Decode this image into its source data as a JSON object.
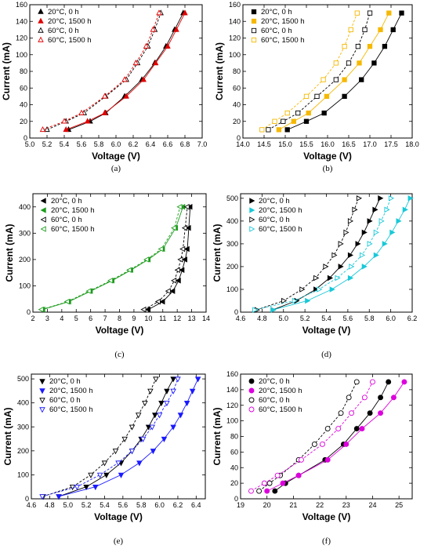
{
  "chart_data": [
    {
      "type": "scatter",
      "panel": "a",
      "caption": "(a)",
      "xlabel": "Voltage (V)",
      "ylabel": "Current (mA)",
      "xlim": [
        5.0,
        7.0
      ],
      "ylim": [
        0,
        160
      ],
      "xticks": [
        5.0,
        5.2,
        5.4,
        5.6,
        5.8,
        6.0,
        6.2,
        6.4,
        6.6,
        6.8,
        7.0
      ],
      "xtick_labels": [
        "5.0",
        "5.2",
        "5.4",
        "5.6",
        "5.8",
        "6.0",
        "6.2",
        "6.4",
        "6.6",
        "6.8",
        "7.0"
      ],
      "yticks": [
        0,
        20,
        40,
        60,
        80,
        100,
        120,
        140,
        160
      ],
      "ytick_labels": [
        "0",
        "20",
        "40",
        "60",
        "80",
        "100",
        "120",
        "140",
        "160"
      ],
      "legend_position": "top-left",
      "series": [
        {
          "name": "20°C, 0 h",
          "marker": "triangle-up",
          "filled": true,
          "color": "#000000",
          "line": "solid",
          "x": [
            5.45,
            5.7,
            5.88,
            6.1,
            6.3,
            6.45,
            6.58,
            6.68,
            6.78
          ],
          "y": [
            10,
            20,
            30,
            50,
            70,
            90,
            110,
            130,
            150
          ]
        },
        {
          "name": "20°C, 1500 h",
          "marker": "triangle-up",
          "filled": true,
          "color": "#e00000",
          "line": "solid",
          "x": [
            5.42,
            5.67,
            5.87,
            6.12,
            6.32,
            6.46,
            6.6,
            6.7,
            6.8
          ],
          "y": [
            10,
            20,
            30,
            50,
            70,
            90,
            110,
            130,
            150
          ]
        },
        {
          "name": "60°C, 0 h",
          "marker": "triangle-up",
          "filled": false,
          "color": "#000000",
          "line": "dash",
          "x": [
            5.2,
            5.42,
            5.63,
            5.88,
            6.12,
            6.25,
            6.37,
            6.45,
            6.52
          ],
          "y": [
            10,
            20,
            30,
            50,
            70,
            90,
            110,
            130,
            150
          ]
        },
        {
          "name": "60°C, 1500 h",
          "marker": "triangle-up",
          "filled": false,
          "color": "#e00000",
          "line": "dash",
          "x": [
            5.15,
            5.4,
            5.6,
            5.87,
            6.1,
            6.23,
            6.35,
            6.43,
            6.5
          ],
          "y": [
            10,
            20,
            30,
            50,
            70,
            90,
            110,
            130,
            150
          ]
        }
      ]
    },
    {
      "type": "scatter",
      "panel": "b",
      "caption": "(b)",
      "xlabel": "Voltage (V)",
      "ylabel": "Current (mA)",
      "xlim": [
        14.0,
        18.0
      ],
      "ylim": [
        0,
        160
      ],
      "xticks": [
        14.0,
        14.5,
        15.0,
        15.5,
        16.0,
        16.5,
        17.0,
        17.5,
        18.0
      ],
      "xtick_labels": [
        "14.0",
        "14.5",
        "15.0",
        "15.5",
        "16.0",
        "16.5",
        "17.0",
        "17.5",
        "18.0"
      ],
      "yticks": [
        0,
        20,
        40,
        60,
        80,
        100,
        120,
        140,
        160
      ],
      "ytick_labels": [
        "0",
        "20",
        "40",
        "60",
        "80",
        "100",
        "120",
        "140",
        "160"
      ],
      "legend_position": "top-left",
      "series": [
        {
          "name": "20°C, 0 h",
          "marker": "square",
          "filled": true,
          "color": "#000000",
          "line": "solid",
          "x": [
            15.05,
            15.5,
            15.92,
            16.4,
            16.8,
            17.1,
            17.35,
            17.55,
            17.75
          ],
          "y": [
            10,
            20,
            30,
            50,
            70,
            90,
            110,
            130,
            150
          ]
        },
        {
          "name": "20°C, 1500 h",
          "marker": "square",
          "filled": true,
          "color": "#f5b800",
          "line": "solid",
          "x": [
            14.85,
            15.2,
            15.55,
            15.98,
            16.4,
            16.75,
            17.0,
            17.25,
            17.45
          ],
          "y": [
            10,
            20,
            30,
            50,
            70,
            90,
            110,
            130,
            150
          ]
        },
        {
          "name": "60°C, 0 h",
          "marker": "square",
          "filled": false,
          "color": "#000000",
          "line": "dash",
          "x": [
            14.6,
            14.95,
            15.3,
            15.75,
            16.2,
            16.5,
            16.72,
            16.88,
            17.0
          ],
          "y": [
            10,
            20,
            30,
            50,
            70,
            90,
            110,
            130,
            150
          ]
        },
        {
          "name": "60°C, 1500 h",
          "marker": "square",
          "filled": false,
          "color": "#f5b800",
          "line": "dash",
          "x": [
            14.45,
            14.75,
            15.05,
            15.5,
            15.9,
            16.2,
            16.4,
            16.55,
            16.7
          ],
          "y": [
            10,
            20,
            30,
            50,
            70,
            90,
            110,
            130,
            150
          ]
        }
      ]
    },
    {
      "type": "scatter",
      "panel": "c",
      "caption": "(c)",
      "xlabel": "Voltage (V)",
      "ylabel": "Current (mA)",
      "xlim": [
        2,
        14
      ],
      "ylim": [
        0,
        450
      ],
      "xticks": [
        2,
        3,
        4,
        5,
        6,
        7,
        8,
        9,
        10,
        11,
        12,
        13,
        14
      ],
      "xtick_labels": [
        "2",
        "3",
        "4",
        "5",
        "6",
        "7",
        "8",
        "9",
        "10",
        "11",
        "12",
        "13",
        "14"
      ],
      "yticks": [
        0,
        100,
        200,
        300,
        400
      ],
      "ytick_labels": [
        "0",
        "100",
        "200",
        "300",
        "400"
      ],
      "legend_position": "top-left",
      "series": [
        {
          "name": "20°C, 0 h",
          "marker": "triangle-left",
          "filled": true,
          "color": "#000000",
          "line": "solid",
          "x": [
            10.0,
            11.0,
            11.7,
            12.1,
            12.35,
            12.55,
            12.7,
            12.8,
            12.9
          ],
          "y": [
            10,
            40,
            80,
            120,
            160,
            200,
            240,
            320,
            400
          ]
        },
        {
          "name": "20°C, 1500 h",
          "marker": "triangle-left",
          "filled": true,
          "color": "#1c9b1c",
          "line": "solid",
          "x": [
            2.7,
            4.5,
            6.0,
            7.5,
            8.8,
            10.0,
            11.0,
            11.9,
            12.4
          ],
          "y": [
            10,
            40,
            80,
            120,
            160,
            200,
            240,
            320,
            400
          ]
        },
        {
          "name": "60°C, 0 h",
          "marker": "triangle-left",
          "filled": false,
          "color": "#000000",
          "line": "dash",
          "x": [
            9.7,
            10.7,
            11.4,
            11.8,
            12.05,
            12.25,
            12.4,
            12.55,
            12.7
          ],
          "y": [
            10,
            40,
            80,
            120,
            160,
            200,
            240,
            320,
            400
          ]
        },
        {
          "name": "60°C, 1500 h",
          "marker": "triangle-left",
          "filled": false,
          "color": "#1c9b1c",
          "line": "dash",
          "x": [
            2.6,
            4.4,
            5.9,
            7.4,
            8.7,
            9.9,
            10.9,
            11.8,
            12.2
          ],
          "y": [
            10,
            40,
            80,
            120,
            160,
            200,
            240,
            320,
            400
          ]
        }
      ]
    },
    {
      "type": "scatter",
      "panel": "d",
      "caption": "(d)",
      "xlabel": "Voltage (V)",
      "ylabel": "Current (mA)",
      "xlim": [
        4.6,
        6.2
      ],
      "ylim": [
        0,
        520
      ],
      "xticks": [
        4.6,
        4.8,
        5.0,
        5.2,
        5.4,
        5.6,
        5.8,
        6.0,
        6.2
      ],
      "xtick_labels": [
        "4.6",
        "4.8",
        "5.0",
        "5.2",
        "5.4",
        "5.6",
        "5.8",
        "6.0",
        "6.2"
      ],
      "yticks": [
        0,
        100,
        200,
        300,
        400,
        500
      ],
      "ytick_labels": [
        "0",
        "100",
        "200",
        "300",
        "400",
        "500"
      ],
      "legend_position": "top-left",
      "series": [
        {
          "name": "20°C, 0 h",
          "marker": "triangle-right",
          "filled": true,
          "color": "#000000",
          "line": "solid",
          "x": [
            4.9,
            5.12,
            5.3,
            5.43,
            5.53,
            5.62,
            5.69,
            5.75,
            5.8,
            5.85,
            5.9
          ],
          "y": [
            10,
            50,
            100,
            150,
            200,
            250,
            300,
            350,
            400,
            450,
            500
          ]
        },
        {
          "name": "20°C, 1500 h",
          "marker": "triangle-right",
          "filled": true,
          "color": "#18c8d8",
          "line": "solid",
          "x": [
            4.9,
            5.22,
            5.45,
            5.62,
            5.75,
            5.86,
            5.94,
            6.01,
            6.07,
            6.13,
            6.18
          ],
          "y": [
            10,
            50,
            100,
            150,
            200,
            250,
            300,
            350,
            400,
            450,
            500
          ]
        },
        {
          "name": "60°C, 0 h",
          "marker": "triangle-right",
          "filled": false,
          "color": "#000000",
          "line": "dash",
          "x": [
            4.75,
            5.0,
            5.17,
            5.3,
            5.39,
            5.47,
            5.53,
            5.58,
            5.62,
            5.66,
            5.7
          ],
          "y": [
            10,
            50,
            100,
            150,
            200,
            250,
            300,
            350,
            400,
            450,
            500
          ]
        },
        {
          "name": "60°C, 1500 h",
          "marker": "triangle-right",
          "filled": false,
          "color": "#18c8d8",
          "line": "dash",
          "x": [
            4.73,
            5.1,
            5.33,
            5.5,
            5.63,
            5.73,
            5.8,
            5.86,
            5.91,
            5.96,
            6.0
          ],
          "y": [
            10,
            50,
            100,
            150,
            200,
            250,
            300,
            350,
            400,
            450,
            500
          ]
        }
      ]
    },
    {
      "type": "scatter",
      "panel": "e",
      "caption": "(e)",
      "xlabel": "Voltage (V)",
      "ylabel": "Current (mA)",
      "xlim": [
        4.6,
        6.5
      ],
      "ylim": [
        0,
        520
      ],
      "xticks": [
        4.6,
        4.8,
        5.0,
        5.2,
        5.4,
        5.6,
        5.8,
        6.0,
        6.2,
        6.4
      ],
      "xtick_labels": [
        "4.6",
        "4.8",
        "5.0",
        "5.2",
        "5.4",
        "5.6",
        "5.8",
        "6.0",
        "6.2",
        "6.4"
      ],
      "yticks": [
        0,
        100,
        200,
        300,
        400,
        500
      ],
      "ytick_labels": [
        "0",
        "100",
        "200",
        "300",
        "400",
        "500"
      ],
      "legend_position": "top-left",
      "series": [
        {
          "name": "20°C, 0 h",
          "marker": "triangle-down",
          "filled": true,
          "color": "#000000",
          "line": "solid",
          "x": [
            4.9,
            5.2,
            5.42,
            5.58,
            5.7,
            5.8,
            5.88,
            5.95,
            6.02,
            6.08,
            6.15
          ],
          "y": [
            10,
            50,
            100,
            150,
            200,
            250,
            300,
            350,
            400,
            450,
            500
          ]
        },
        {
          "name": "20°C, 1500 h",
          "marker": "triangle-down",
          "filled": true,
          "color": "#1a1aff",
          "line": "solid",
          "x": [
            4.9,
            5.3,
            5.58,
            5.78,
            5.93,
            6.05,
            6.15,
            6.23,
            6.3,
            6.36,
            6.42
          ],
          "y": [
            10,
            50,
            100,
            150,
            200,
            250,
            300,
            350,
            400,
            450,
            500
          ]
        },
        {
          "name": "60°C, 0 h",
          "marker": "triangle-down",
          "filled": false,
          "color": "#000000",
          "line": "dash",
          "x": [
            4.73,
            5.05,
            5.25,
            5.4,
            5.52,
            5.62,
            5.7,
            5.77,
            5.84,
            5.9,
            5.96
          ],
          "y": [
            10,
            50,
            100,
            150,
            200,
            250,
            300,
            350,
            400,
            450,
            500
          ]
        },
        {
          "name": "60°C, 1500 h",
          "marker": "triangle-down",
          "filled": false,
          "color": "#1a1aff",
          "line": "dash",
          "x": [
            4.72,
            5.1,
            5.35,
            5.55,
            5.7,
            5.82,
            5.92,
            6.0,
            6.08,
            6.15,
            6.2
          ],
          "y": [
            10,
            50,
            100,
            150,
            200,
            250,
            300,
            350,
            400,
            450,
            500
          ]
        }
      ]
    },
    {
      "type": "scatter",
      "panel": "f",
      "caption": "(f)",
      "xlabel": "Voltage (V)",
      "ylabel": "Current (mA)",
      "xlim": [
        19,
        25.5
      ],
      "ylim": [
        0,
        160
      ],
      "xticks": [
        19,
        20,
        21,
        22,
        23,
        24,
        25
      ],
      "xtick_labels": [
        "19",
        "20",
        "21",
        "22",
        "23",
        "24",
        "25"
      ],
      "yticks": [
        0,
        20,
        40,
        60,
        80,
        100,
        120,
        140,
        160
      ],
      "ytick_labels": [
        "0",
        "20",
        "40",
        "60",
        "80",
        "100",
        "120",
        "140",
        "160"
      ],
      "legend_position": "top-left",
      "series": [
        {
          "name": "20°C, 0 h",
          "marker": "circle",
          "filled": true,
          "color": "#000000",
          "line": "solid",
          "x": [
            20.3,
            20.7,
            21.2,
            22.2,
            22.9,
            23.4,
            23.9,
            24.3,
            24.6
          ],
          "y": [
            10,
            20,
            30,
            50,
            70,
            90,
            110,
            130,
            150
          ]
        },
        {
          "name": "20°C, 1500 h",
          "marker": "circle",
          "filled": true,
          "color": "#dd00dd",
          "line": "solid",
          "x": [
            20.0,
            20.6,
            21.2,
            22.3,
            23.0,
            23.6,
            24.3,
            24.8,
            25.2
          ],
          "y": [
            10,
            20,
            30,
            50,
            70,
            90,
            110,
            130,
            150
          ]
        },
        {
          "name": "60°C, 0 h",
          "marker": "circle",
          "filled": false,
          "color": "#000000",
          "line": "dash",
          "x": [
            19.7,
            20.1,
            20.5,
            21.2,
            21.8,
            22.3,
            22.8,
            23.1,
            23.4
          ],
          "y": [
            10,
            20,
            30,
            50,
            70,
            90,
            110,
            130,
            150
          ]
        },
        {
          "name": "60°C, 1500 h",
          "marker": "circle",
          "filled": false,
          "color": "#dd00dd",
          "line": "dash",
          "x": [
            19.4,
            19.9,
            20.4,
            21.3,
            22.1,
            22.7,
            23.2,
            23.7,
            24.0
          ],
          "y": [
            10,
            20,
            30,
            50,
            70,
            90,
            110,
            130,
            150
          ]
        }
      ]
    }
  ]
}
